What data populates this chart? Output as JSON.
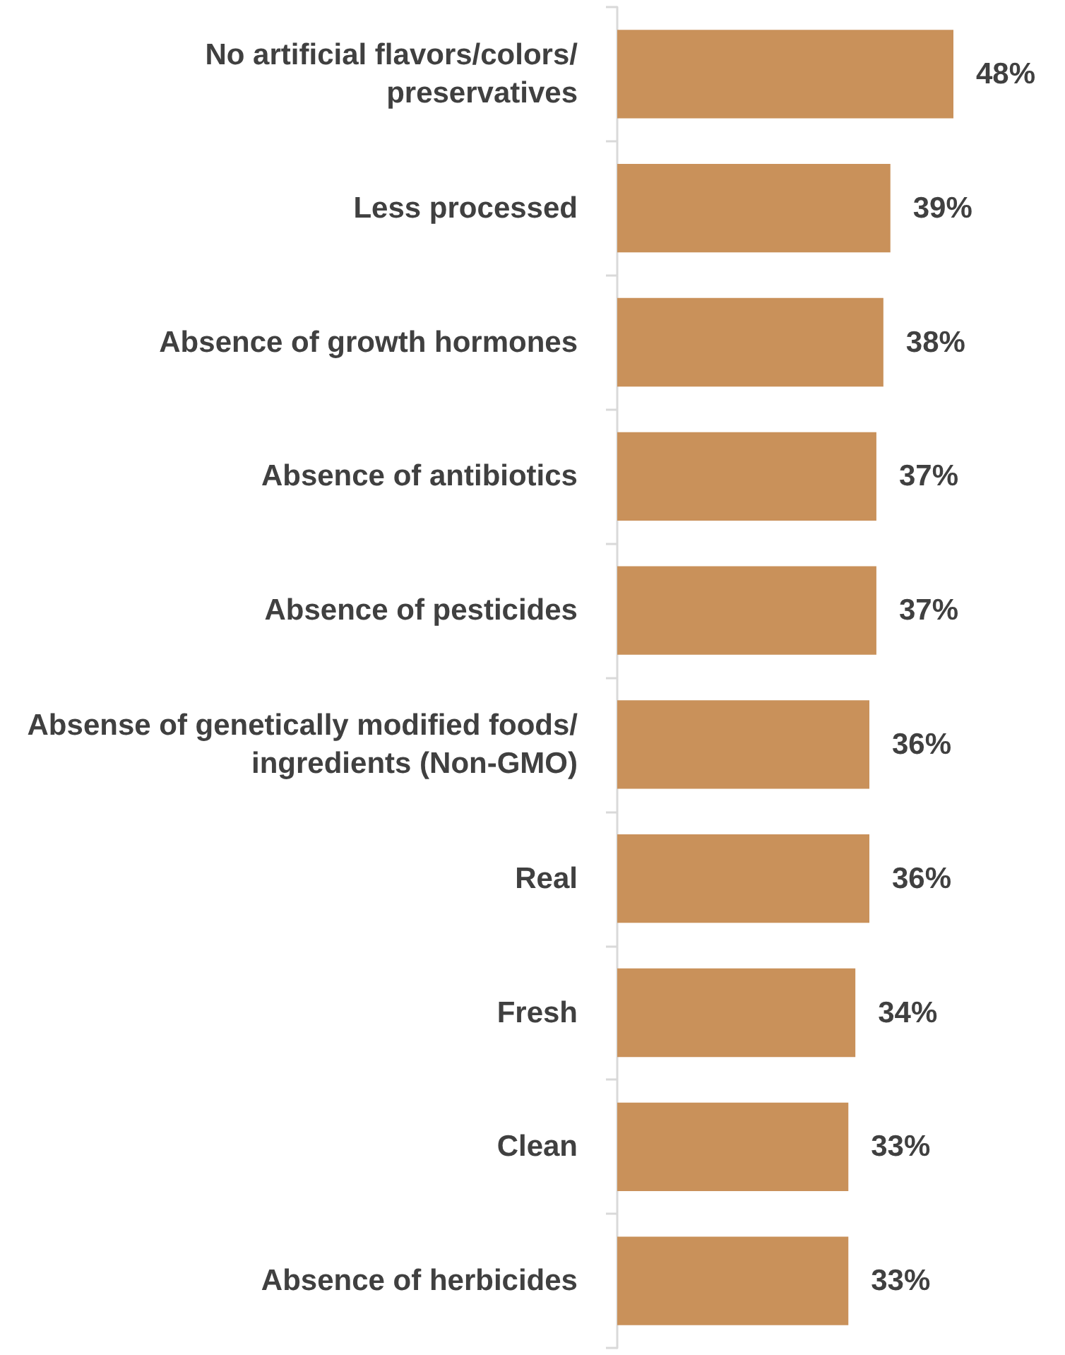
{
  "chart_data": {
    "type": "bar",
    "orientation": "horizontal",
    "categories": [
      "No artificial flavors/colors/preservatives",
      "Less processed",
      "Absence of growth hormones",
      "Absence of antibiotics",
      "Absence of pesticides",
      "Absense of genetically modified foods/ingredients (Non-GMO)",
      "Real",
      "Fresh",
      "Clean",
      "Absence of herbicides"
    ],
    "values": [
      48,
      39,
      38,
      37,
      37,
      36,
      36,
      34,
      33,
      33
    ],
    "value_labels": [
      "48%",
      "39%",
      "38%",
      "37%",
      "37%",
      "36%",
      "36%",
      "34%",
      "33%",
      "33%"
    ],
    "color": "#c9915a"
  }
}
